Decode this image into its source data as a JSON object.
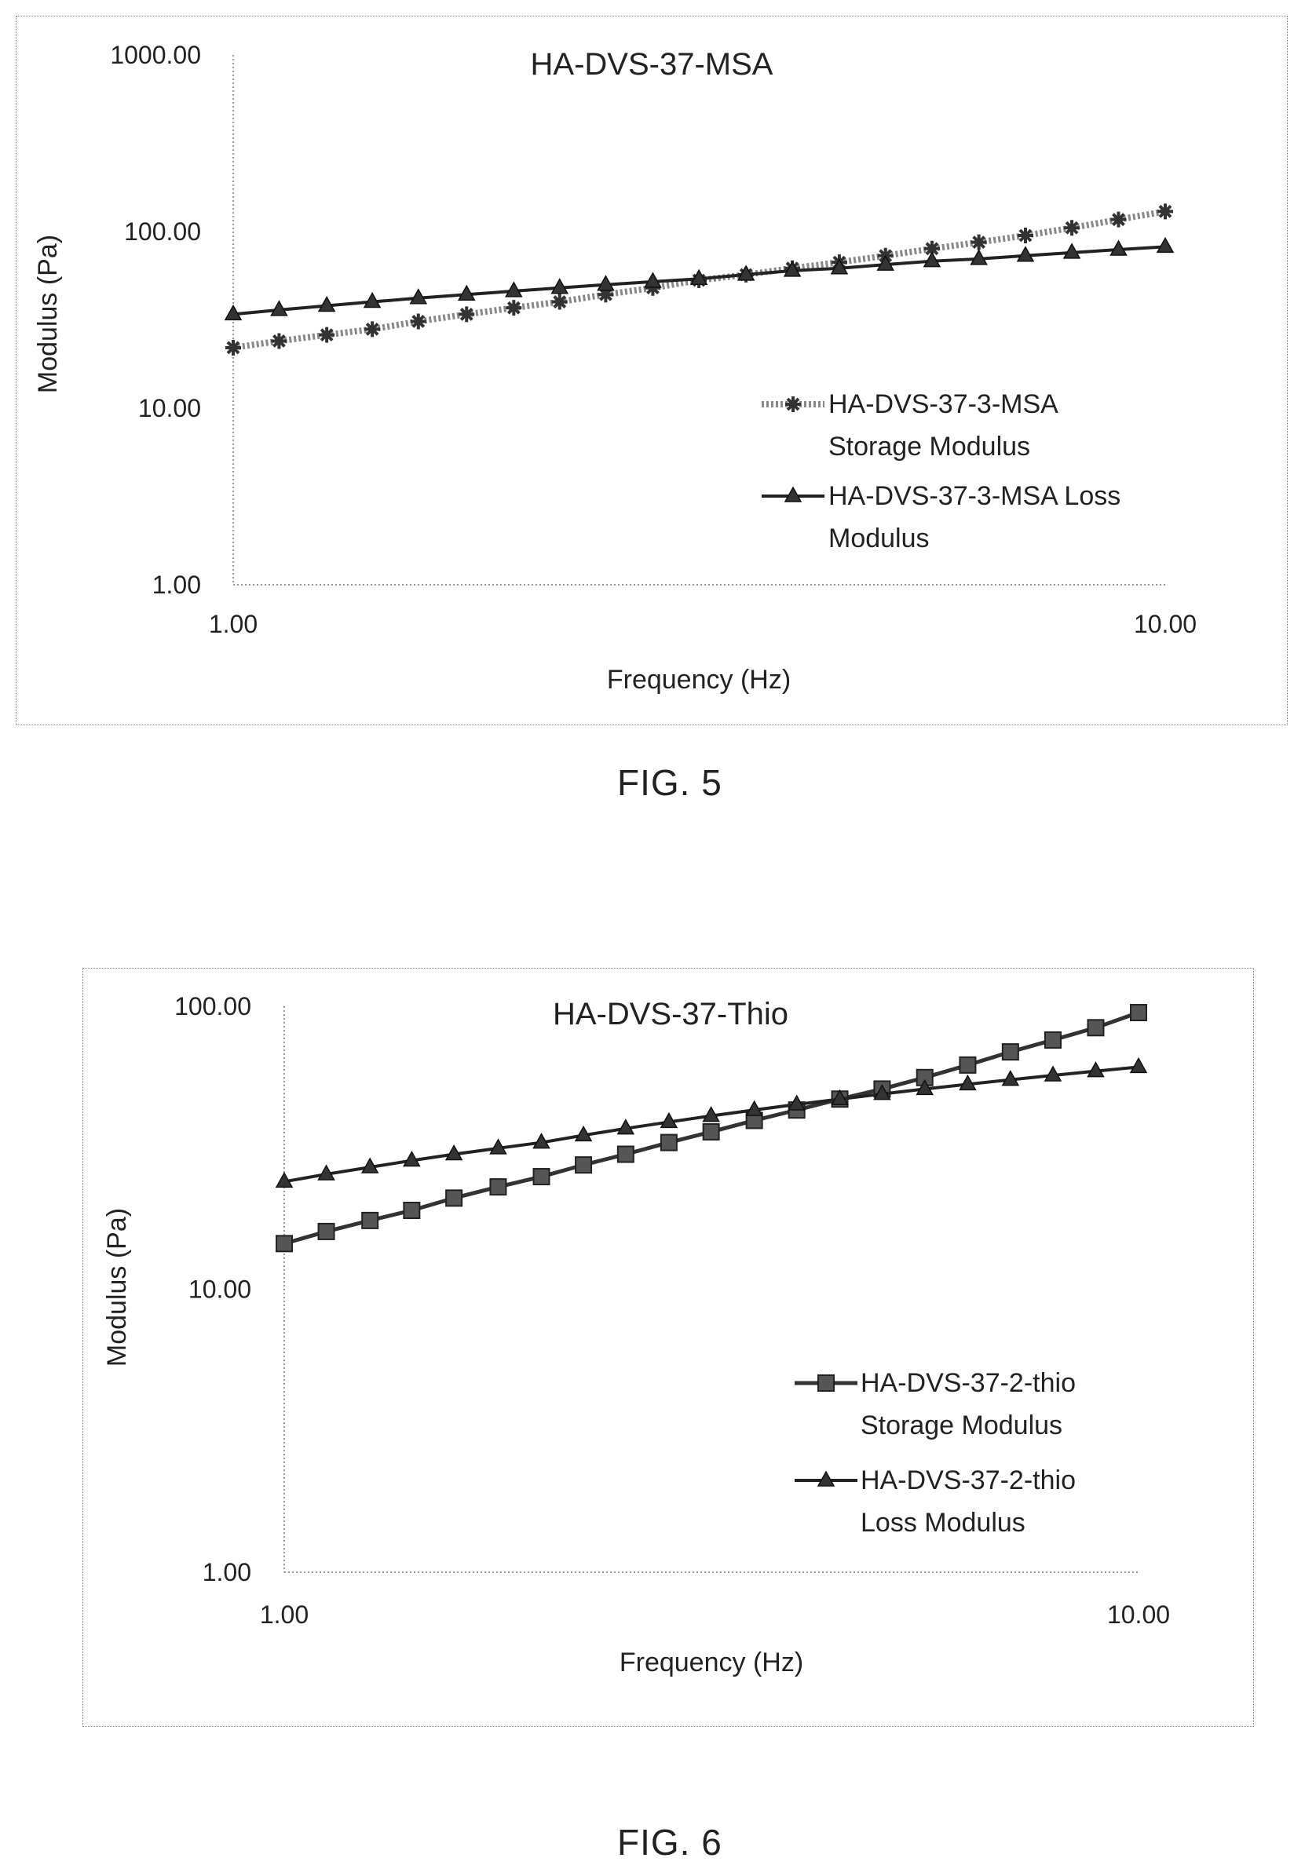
{
  "chart_data": [
    {
      "type": "line",
      "title": "HA-DVS-37-MSA",
      "xlabel": "Frequency (Hz)",
      "ylabel": "Modulus (Pa)",
      "x_scale": "log",
      "y_scale": "log",
      "xlim": [
        1,
        10
      ],
      "ylim": [
        1,
        1000
      ],
      "x_ticks": [
        "1.00",
        "10.00"
      ],
      "y_ticks": [
        "1.00",
        "10.00",
        "100.00",
        "1000.00"
      ],
      "grid": false,
      "legend_position": "right",
      "x": [
        1.0,
        1.12,
        1.26,
        1.41,
        1.58,
        1.78,
        2.0,
        2.24,
        2.51,
        2.82,
        3.16,
        3.55,
        3.98,
        4.47,
        5.01,
        5.62,
        6.31,
        7.08,
        7.94,
        8.91,
        10.0
      ],
      "series": [
        {
          "name": "HA-DVS-37-3-MSA Storage Modulus",
          "legend_lines": [
            "HA-DVS-37-3-MSA",
            "Storage Modulus"
          ],
          "marker": "star",
          "values": [
            22,
            24,
            26,
            28,
            31,
            34,
            37,
            40,
            44,
            48,
            53,
            57,
            62,
            67,
            73,
            80,
            87,
            95,
            105,
            117,
            130
          ]
        },
        {
          "name": "HA-DVS-37-3-MSA Loss Modulus",
          "legend_lines": [
            "HA-DVS-37-3-MSA Loss",
            "Modulus"
          ],
          "marker": "triangle",
          "values": [
            34,
            36,
            38,
            40,
            42,
            44,
            46,
            48,
            50,
            52,
            54,
            57,
            60,
            62,
            65,
            68,
            70,
            73,
            76,
            79,
            82
          ]
        }
      ]
    },
    {
      "type": "line",
      "title": "HA-DVS-37-Thio",
      "xlabel": "Frequency (Hz)",
      "ylabel": "Modulus (Pa)",
      "x_scale": "log",
      "y_scale": "log",
      "xlim": [
        1,
        10
      ],
      "ylim": [
        1,
        100
      ],
      "x_ticks": [
        "1.00",
        "10.00"
      ],
      "y_ticks": [
        "1.00",
        "10.00",
        "100.00"
      ],
      "grid": false,
      "legend_position": "right",
      "x": [
        1.0,
        1.12,
        1.26,
        1.41,
        1.58,
        1.78,
        2.0,
        2.24,
        2.51,
        2.82,
        3.16,
        3.55,
        3.98,
        4.47,
        5.01,
        5.62,
        6.31,
        7.08,
        7.94,
        8.91,
        10.0
      ],
      "series": [
        {
          "name": "HA-DVS-37-2-thio Storage Modulus",
          "legend_lines": [
            "HA-DVS-37-2-thio",
            "Storage Modulus"
          ],
          "marker": "square",
          "values": [
            14.5,
            16,
            17.5,
            19,
            21,
            23,
            25,
            27.5,
            30,
            33,
            36,
            39.5,
            43,
            47,
            51,
            56,
            62,
            69,
            76,
            84,
            95
          ]
        },
        {
          "name": "HA-DVS-37-2-thio Loss Modulus",
          "legend_lines": [
            "HA-DVS-37-2-thio",
            "Loss Modulus"
          ],
          "marker": "triangle",
          "values": [
            24,
            25.5,
            27,
            28.5,
            30,
            31.5,
            33,
            35,
            37,
            39,
            41,
            43,
            45,
            47,
            49,
            51,
            53,
            55,
            57,
            59,
            61
          ]
        }
      ]
    }
  ],
  "captions": {
    "fig5": "FIG. 5",
    "fig6": "FIG. 6"
  }
}
